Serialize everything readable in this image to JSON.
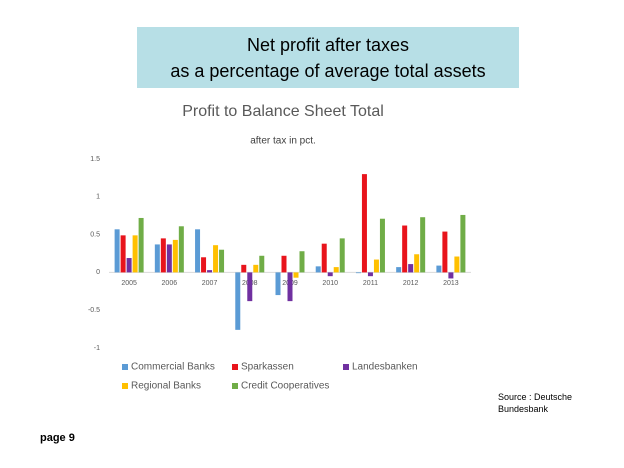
{
  "header": {
    "lines": [
      "Net profit after taxes",
      "as a percentage of average total assets"
    ]
  },
  "chart_data": {
    "type": "bar",
    "title": "Profit to Balance Sheet Total",
    "subtitle": "after tax in pct.",
    "categories": [
      "2005",
      "2006",
      "2007",
      "2008",
      "2009",
      "2010",
      "2011",
      "2012",
      "2013"
    ],
    "series": [
      {
        "name": "Commercial Banks",
        "color": "#5b9bd5",
        "values": [
          0.57,
          0.37,
          0.57,
          -0.76,
          -0.3,
          0.08,
          -0.01,
          0.07,
          0.09
        ]
      },
      {
        "name": "Sparkassen",
        "color": "#e8141c",
        "values": [
          0.49,
          0.45,
          0.2,
          0.1,
          0.22,
          0.38,
          1.3,
          0.62,
          0.54
        ]
      },
      {
        "name": "Landesbanken",
        "color": "#7030a0",
        "values": [
          0.19,
          0.37,
          0.03,
          -0.38,
          -0.38,
          -0.05,
          -0.05,
          0.11,
          -0.08
        ]
      },
      {
        "name": "Regional Banks",
        "color": "#ffc000",
        "values": [
          0.49,
          0.43,
          0.36,
          0.1,
          -0.07,
          0.07,
          0.17,
          0.24,
          0.21
        ]
      },
      {
        "name": "Credit Cooperatives",
        "color": "#70ad47",
        "values": [
          0.72,
          0.61,
          0.3,
          0.22,
          0.28,
          0.45,
          0.71,
          0.73,
          0.76
        ]
      }
    ],
    "ylim": [
      -1,
      1.5
    ],
    "yticks": [
      1.5,
      1,
      0.5,
      0,
      -0.5,
      -1
    ],
    "grid": false,
    "legend": "bottom"
  },
  "source": "Source : Deutsche Bundesbank",
  "page": "page 9"
}
